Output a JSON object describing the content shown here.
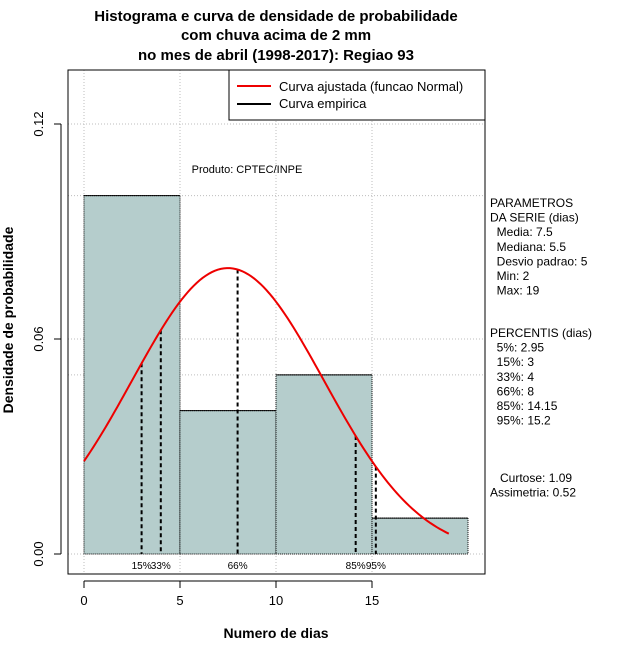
{
  "chart_data": {
    "type": "bar",
    "title_lines": [
      "Histograma e curva de densidade de probabilidade",
      "com chuva acima de 2 mm",
      "no mes de abril (1998-2017): Regiao 93"
    ],
    "xlabel": "Numero de dias",
    "ylabel": "Densidade de probabilidade",
    "xlim": [
      -1.5,
      20.5
    ],
    "ylim": [
      0,
      0.13
    ],
    "x_ticks": [
      0,
      5,
      10,
      15
    ],
    "x_tick_labels": [
      "0",
      "5",
      "10",
      "15"
    ],
    "y_ticks": [
      0,
      0.06,
      0.12
    ],
    "y_tick_labels": [
      "0.00",
      "0.06",
      "0.12"
    ],
    "grid": true,
    "bins": [
      {
        "x0": 0,
        "x1": 5,
        "density": 0.1
      },
      {
        "x0": 5,
        "x1": 10,
        "density": 0.04
      },
      {
        "x0": 10,
        "x1": 15,
        "density": 0.05
      },
      {
        "x0": 15,
        "x1": 20,
        "density": 0.01
      }
    ],
    "bar_color": "#b5cdcc",
    "fitted_curve": {
      "name": "Curva ajustada (funcao Normal)",
      "mean": 7.5,
      "sd": 5,
      "x_from": 0,
      "x_to": 19,
      "color": "#ee0000"
    },
    "empirical_curve": {
      "name": "Curva empirica",
      "color": "#000000"
    },
    "percentile_lines": [
      {
        "label": "15%",
        "x": 3,
        "show_label": true
      },
      {
        "label": "33%",
        "x": 4,
        "show_label": true
      },
      {
        "label": "66%",
        "x": 8,
        "show_label": true
      },
      {
        "label": "85%",
        "x": 14.15,
        "show_label": true
      },
      {
        "label": "95%",
        "x": 15.2,
        "show_label": true
      }
    ],
    "annotation": "Produto: CPTEC/INPE",
    "legend_position": "top-right"
  },
  "side_panel": {
    "parametros": [
      "PARAMETROS",
      "DA SERIE (dias)",
      "  Media: 7.5",
      "  Mediana: 5.5",
      "  Desvio padrao: 5",
      "  Min: 2",
      "  Max: 19"
    ],
    "percentis": [
      "PERCENTIS (dias)",
      "  5%: 2.95",
      "  15%: 3",
      "  33%: 4",
      "  66%: 8",
      "  85%: 14.15",
      "  95%: 15.2"
    ],
    "stats": [
      "   Curtose: 1.09",
      "Assimetria: 0.52"
    ]
  }
}
